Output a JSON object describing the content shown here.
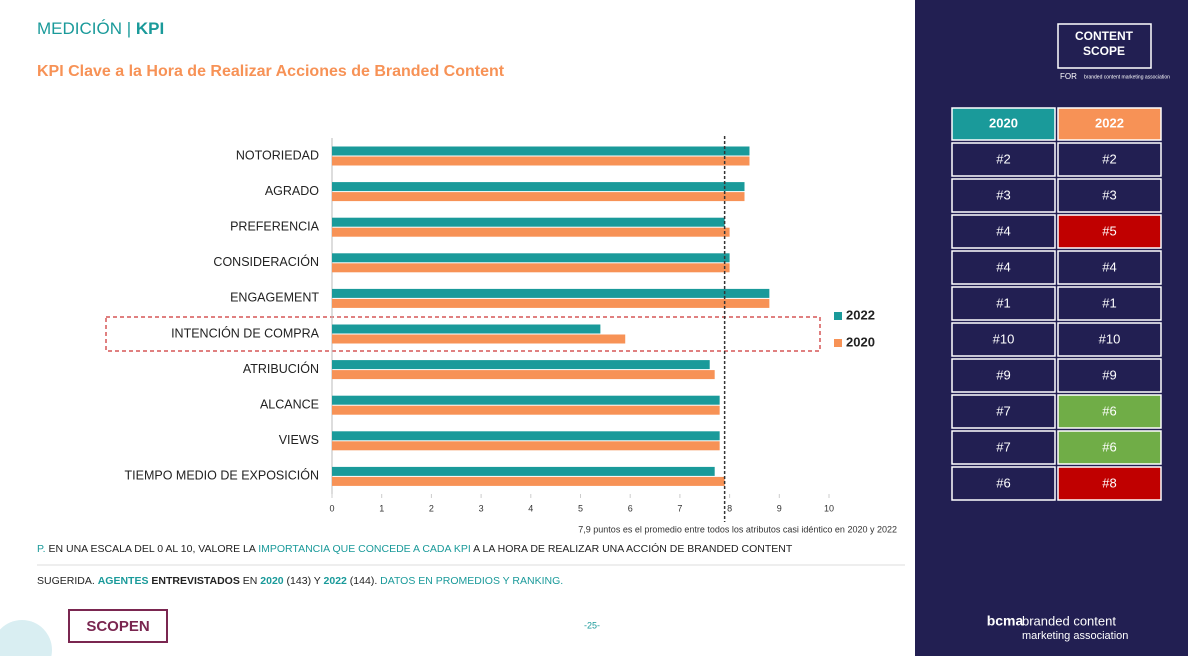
{
  "header": {
    "section": "MEDICIÓN",
    "separator": "|",
    "section_bold": "KPI"
  },
  "chart_data": {
    "type": "hbar",
    "title": "KPI Clave a la Hora de Realizar Acciones de Branded Content",
    "categories": [
      "NOTORIEDAD",
      "AGRADO",
      "PREFERENCIA",
      "CONSIDERACIÓN",
      "ENGAGEMENT",
      "INTENCIÓN DE COMPRA",
      "ATRIBUCIÓN",
      "ALCANCE",
      "VIEWS",
      "TIEMPO MEDIO DE EXPOSICIÓN"
    ],
    "series": [
      {
        "name": "2022",
        "color": "#1a9a9a",
        "values": [
          8.4,
          8.3,
          7.9,
          8.0,
          8.8,
          5.4,
          7.6,
          7.8,
          7.8,
          7.7
        ]
      },
      {
        "name": "2020",
        "color": "#f79256",
        "values": [
          8.4,
          8.3,
          8.0,
          8.0,
          8.8,
          5.9,
          7.7,
          7.8,
          7.8,
          7.9
        ]
      }
    ],
    "xlim": [
      0,
      10
    ],
    "xticks": [
      0,
      1,
      2,
      3,
      4,
      5,
      6,
      7,
      8,
      9,
      10
    ],
    "reference_line": 7.9,
    "highlight_category": 5,
    "annotation": "7,9 puntos es el promedio entre todos los atributos casi idéntico en 2020 y 2022",
    "legend": "right"
  },
  "notes": [
    [
      {
        "text": "P. ",
        "style": "teal"
      },
      {
        "text": "EN UNA ESCALA DEL 0 AL 10, VALORE LA ",
        "style": "dark"
      },
      {
        "text": "IMPORTANCIA QUE CONCEDE A CADA KPI",
        "style": "teal"
      },
      {
        "text": " A LA HORA DE REALIZAR UNA ACCIÓN DE BRANDED CONTENT",
        "style": "dark"
      }
    ],
    [
      {
        "text": "SUGERIDA. ",
        "style": "dark"
      },
      {
        "text": "AGENTES ",
        "style": "teal-bold"
      },
      {
        "text": "ENTREVISTADOS",
        "style": "dark-bold"
      },
      {
        "text": " EN ",
        "style": "dark"
      },
      {
        "text": "2020",
        "style": "teal-bold"
      },
      {
        "text": " (143) Y ",
        "style": "dark"
      },
      {
        "text": "2022",
        "style": "teal-bold"
      },
      {
        "text": " (144). ",
        "style": "dark"
      },
      {
        "text": "DATOS EN PROMEDIOS Y RANKING.",
        "style": "teal"
      }
    ]
  ],
  "footer": {
    "brand": "SCOPEN",
    "page": "-25-"
  },
  "panel": {
    "logo_line1": "CONTENT",
    "logo_line2": "SCOPE",
    "logo_for": "FOR",
    "logo_assoc": "branded content marketing association",
    "bottom_mark": "bcma",
    "bottom_line1": "branded content",
    "bottom_line2": "marketing association"
  },
  "table": {
    "headers": [
      "2020",
      "2022"
    ],
    "header_colors": [
      "#1a9a9a",
      "#f79256"
    ],
    "rows": [
      [
        "#2",
        "#2"
      ],
      [
        "#3",
        "#3"
      ],
      [
        "#4",
        "#5"
      ],
      [
        "#4",
        "#4"
      ],
      [
        "#1",
        "#1"
      ],
      [
        "#10",
        "#10"
      ],
      [
        "#9",
        "#9"
      ],
      [
        "#7",
        "#6"
      ],
      [
        "#7",
        "#6"
      ],
      [
        "#6",
        "#8"
      ]
    ],
    "cell_colors": [
      [
        "#221f52",
        "#221f52"
      ],
      [
        "#221f52",
        "#221f52"
      ],
      [
        "#221f52",
        "#c00000"
      ],
      [
        "#221f52",
        "#221f52"
      ],
      [
        "#221f52",
        "#221f52"
      ],
      [
        "#221f52",
        "#221f52"
      ],
      [
        "#221f52",
        "#221f52"
      ],
      [
        "#221f52",
        "#70ad47"
      ],
      [
        "#221f52",
        "#70ad47"
      ],
      [
        "#221f52",
        "#c00000"
      ]
    ]
  }
}
